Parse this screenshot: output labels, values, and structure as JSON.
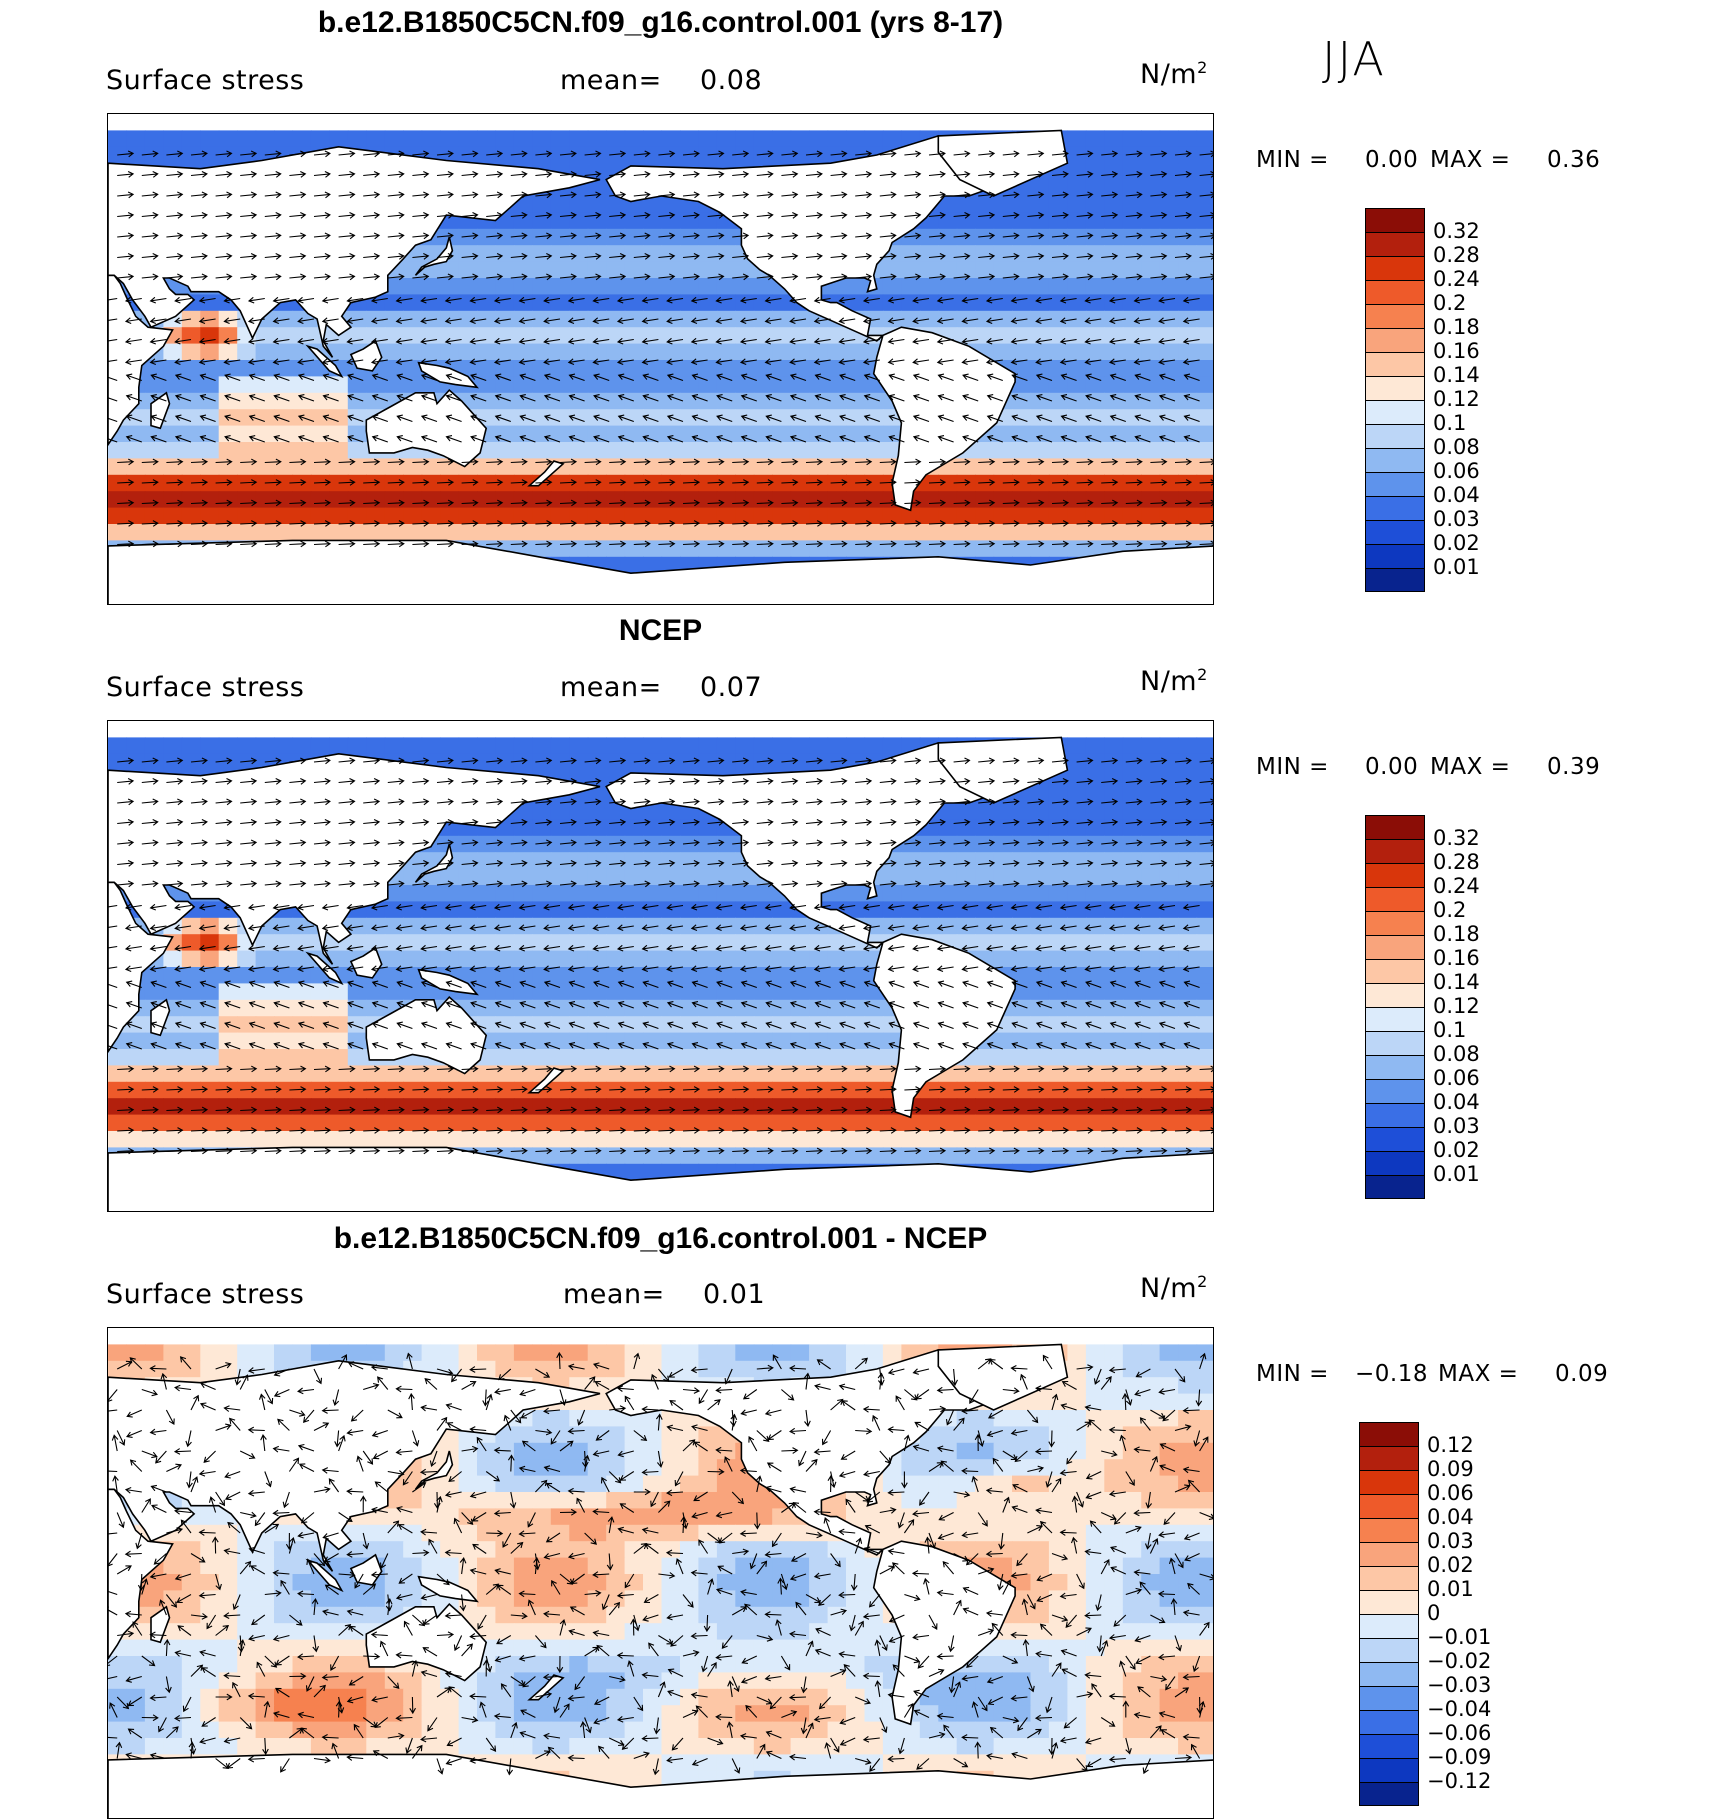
{
  "season": "JJA",
  "units_text": "N/m",
  "units_sup": "2",
  "panels": [
    {
      "title": "b.e12.B1850C5CN.f09_g16.control.001 (yrs 8-17)",
      "variable": "Surface stress",
      "mean_label": "mean=",
      "mean_value": "0.08",
      "min_label": "MIN =",
      "min_value": "0.00",
      "max_label": "MAX =",
      "max_value": "0.36",
      "colorbar": {
        "levels": [
          "0.32",
          "0.28",
          "0.24",
          "0.2",
          "0.18",
          "0.16",
          "0.14",
          "0.12",
          "0.1",
          "0.08",
          "0.06",
          "0.04",
          "0.03",
          "0.02",
          "0.01"
        ],
        "colors": [
          "#8b0d06",
          "#b3200d",
          "#d9360b",
          "#ee5a2a",
          "#f6814f",
          "#f9a47c",
          "#fdc7a6",
          "#fee8d6",
          "#dcebfb",
          "#bcd6f7",
          "#8fb9f2",
          "#5e93ec",
          "#3a6fe6",
          "#1e4fd8",
          "#0d38c0",
          "#08238e"
        ]
      }
    },
    {
      "title": "NCEP",
      "variable": "Surface stress",
      "mean_label": "mean=",
      "mean_value": "0.07",
      "min_label": "MIN =",
      "min_value": "0.00",
      "max_label": "MAX =",
      "max_value": "0.39",
      "colorbar": {
        "levels": [
          "0.32",
          "0.28",
          "0.24",
          "0.2",
          "0.18",
          "0.16",
          "0.14",
          "0.12",
          "0.1",
          "0.08",
          "0.06",
          "0.04",
          "0.03",
          "0.02",
          "0.01"
        ],
        "colors": [
          "#8b0d06",
          "#b3200d",
          "#d9360b",
          "#ee5a2a",
          "#f6814f",
          "#f9a47c",
          "#fdc7a6",
          "#fee8d6",
          "#dcebfb",
          "#bcd6f7",
          "#8fb9f2",
          "#5e93ec",
          "#3a6fe6",
          "#1e4fd8",
          "#0d38c0",
          "#08238e"
        ]
      }
    },
    {
      "title": "b.e12.B1850C5CN.f09_g16.control.001 - NCEP",
      "variable": "Surface stress",
      "mean_label": "mean=",
      "mean_value": "0.01",
      "min_label": "MIN =",
      "min_value": "−0.18",
      "max_label": "MAX =",
      "max_value": "0.09",
      "colorbar": {
        "levels": [
          "0.12",
          "0.09",
          "0.06",
          "0.04",
          "0.03",
          "0.02",
          "0.01",
          "0",
          "−0.01",
          "−0.02",
          "−0.03",
          "−0.04",
          "−0.06",
          "−0.09",
          "−0.12"
        ],
        "colors": [
          "#8b0d06",
          "#b3200d",
          "#d9360b",
          "#ee5a2a",
          "#f6814f",
          "#f9a47c",
          "#fdc7a6",
          "#fee8d6",
          "#dcebfb",
          "#bcd6f7",
          "#8fb9f2",
          "#5e93ec",
          "#3a6fe6",
          "#1e4fd8",
          "#0d38c0",
          "#08238e"
        ]
      }
    }
  ],
  "chart_data": [
    {
      "type": "heatmap",
      "title": "b.e12.B1850C5CN.f09_g16.control.001 (yrs 8-17)",
      "variable": "Surface stress",
      "units": "N/m^2",
      "season": "JJA",
      "mean": 0.08,
      "min": 0.0,
      "max": 0.36,
      "contour_levels": [
        0.01,
        0.02,
        0.03,
        0.04,
        0.06,
        0.08,
        0.1,
        0.12,
        0.14,
        0.16,
        0.18,
        0.2,
        0.24,
        0.28,
        0.32
      ],
      "notes": "Global map of surface wind stress magnitude (filled contours) with stress vectors; strongest in Southern Ocean westerlies and Arabian Sea (Somali jet)."
    },
    {
      "type": "heatmap",
      "title": "NCEP",
      "variable": "Surface stress",
      "units": "N/m^2",
      "season": "JJA",
      "mean": 0.07,
      "min": 0.0,
      "max": 0.39,
      "contour_levels": [
        0.01,
        0.02,
        0.03,
        0.04,
        0.06,
        0.08,
        0.1,
        0.12,
        0.14,
        0.16,
        0.18,
        0.2,
        0.24,
        0.28,
        0.32
      ]
    },
    {
      "type": "heatmap",
      "title": "b.e12.B1850C5CN.f09_g16.control.001 - NCEP",
      "variable": "Surface stress",
      "units": "N/m^2",
      "season": "JJA",
      "mean": 0.01,
      "min": -0.18,
      "max": 0.09,
      "contour_levels": [
        -0.12,
        -0.09,
        -0.06,
        -0.04,
        -0.03,
        -0.02,
        -0.01,
        0,
        0.01,
        0.02,
        0.03,
        0.04,
        0.06,
        0.09,
        0.12
      ]
    }
  ]
}
